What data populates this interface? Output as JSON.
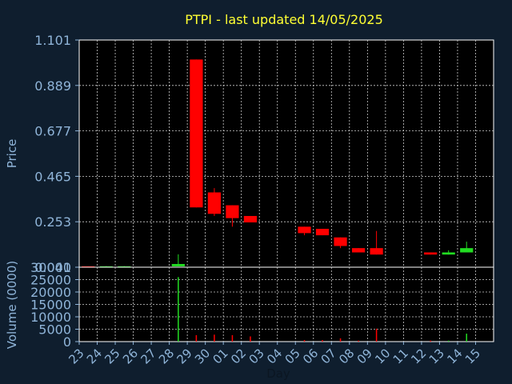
{
  "chart_data": [
    {
      "type": "candlestick",
      "title": "PTPI - last updated 14/05/2025",
      "ylabel": "Price",
      "xlabel": "",
      "ylim": [
        0.041,
        1.101
      ],
      "yticks": [
        "1.101",
        "0.889",
        "0.677",
        "0.465",
        "0.253",
        "0.041"
      ],
      "grid": true,
      "colors": {
        "up": "#22dd22",
        "down": "#ff0000",
        "background": "#0f1e2e",
        "title": "#ffff33",
        "axis_text": "#8fb4d8"
      },
      "candles": [
        {
          "day": "23",
          "open": 0.045,
          "close": 0.041,
          "high": 0.045,
          "low": 0.041
        },
        {
          "day": "24",
          "open": 0.041,
          "close": 0.045,
          "high": 0.046,
          "low": 0.041
        },
        {
          "day": "25",
          "open": 0.041,
          "close": 0.045,
          "high": 0.046,
          "low": 0.041
        },
        {
          "day": "28",
          "open": 0.045,
          "close": 0.056,
          "high": 0.101,
          "low": 0.045
        },
        {
          "day": "29",
          "open": 1.01,
          "close": 0.32,
          "high": 1.01,
          "low": 0.32
        },
        {
          "day": "30",
          "open": 0.39,
          "close": 0.29,
          "high": 0.41,
          "low": 0.28
        },
        {
          "day": "01",
          "open": 0.33,
          "close": 0.27,
          "high": 0.33,
          "low": 0.23
        },
        {
          "day": "02",
          "open": 0.28,
          "close": 0.25,
          "high": 0.28,
          "low": 0.25
        },
        {
          "day": "05",
          "open": 0.23,
          "close": 0.2,
          "high": 0.23,
          "low": 0.19
        },
        {
          "day": "06",
          "open": 0.22,
          "close": 0.19,
          "high": 0.22,
          "low": 0.19
        },
        {
          "day": "07",
          "open": 0.18,
          "close": 0.14,
          "high": 0.18,
          "low": 0.13
        },
        {
          "day": "08",
          "open": 0.13,
          "close": 0.11,
          "high": 0.13,
          "low": 0.11
        },
        {
          "day": "09",
          "open": 0.13,
          "close": 0.1,
          "high": 0.21,
          "low": 0.1
        },
        {
          "day": "12",
          "open": 0.11,
          "close": 0.1,
          "high": 0.11,
          "low": 0.1
        },
        {
          "day": "13",
          "open": 0.1,
          "close": 0.11,
          "high": 0.12,
          "low": 0.1
        },
        {
          "day": "14",
          "open": 0.11,
          "close": 0.13,
          "high": 0.16,
          "low": 0.11
        }
      ]
    },
    {
      "type": "bar",
      "ylabel": "Volume (0000)",
      "xlabel": "Day",
      "ylim": [
        0,
        30000
      ],
      "yticks": [
        "30000",
        "25000",
        "20000",
        "15000",
        "10000",
        "5000",
        "0"
      ],
      "grid": true,
      "categories": [
        "23",
        "24",
        "25",
        "26",
        "27",
        "28",
        "29",
        "30",
        "01",
        "02",
        "03",
        "04",
        "05",
        "06",
        "07",
        "08",
        "09",
        "10",
        "11",
        "12",
        "13",
        "14",
        "15"
      ],
      "bars": [
        {
          "day": "28",
          "value": 26000,
          "direction": "up"
        },
        {
          "day": "29",
          "value": 2600,
          "direction": "down"
        },
        {
          "day": "30",
          "value": 2800,
          "direction": "down"
        },
        {
          "day": "01",
          "value": 2600,
          "direction": "down"
        },
        {
          "day": "02",
          "value": 2100,
          "direction": "down"
        },
        {
          "day": "05",
          "value": 600,
          "direction": "down"
        },
        {
          "day": "06",
          "value": 600,
          "direction": "down"
        },
        {
          "day": "07",
          "value": 1300,
          "direction": "down"
        },
        {
          "day": "08",
          "value": 400,
          "direction": "down"
        },
        {
          "day": "09",
          "value": 5200,
          "direction": "down"
        },
        {
          "day": "12",
          "value": 400,
          "direction": "down"
        },
        {
          "day": "13",
          "value": 400,
          "direction": "up"
        },
        {
          "day": "14",
          "value": 3200,
          "direction": "up"
        }
      ]
    }
  ]
}
